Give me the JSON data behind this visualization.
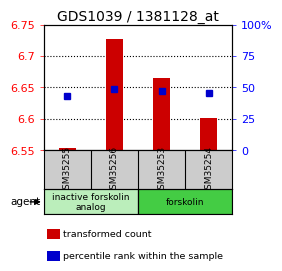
{
  "title": "GDS1039 / 1381128_at",
  "samples": [
    "GSM35255",
    "GSM35256",
    "GSM35253",
    "GSM35254"
  ],
  "bar_values": [
    6.553,
    6.727,
    6.665,
    6.601
  ],
  "bar_bottom": 6.55,
  "blue_values": [
    6.636,
    6.648,
    6.645,
    6.641
  ],
  "ylim_left": [
    6.55,
    6.75
  ],
  "yticks_left": [
    6.55,
    6.6,
    6.65,
    6.7,
    6.75
  ],
  "ytick_labels_left": [
    "6.55",
    "6.6",
    "6.65",
    "6.7",
    "6.75"
  ],
  "ylim_right": [
    0,
    100
  ],
  "yticks_right": [
    0,
    25,
    50,
    75,
    100
  ],
  "ytick_labels_right": [
    "0",
    "25",
    "50",
    "75",
    "100%"
  ],
  "bar_color": "#cc0000",
  "blue_color": "#0000cc",
  "agent_groups": [
    {
      "label": "inactive forskolin\nanalog",
      "span": [
        0,
        2
      ],
      "color": "#bbeebb"
    },
    {
      "label": "forskolin",
      "span": [
        2,
        4
      ],
      "color": "#44cc44"
    }
  ],
  "agent_label": "agent",
  "legend_items": [
    {
      "color": "#cc0000",
      "label": "  transformed count"
    },
    {
      "color": "#0000cc",
      "label": "  percentile rank within the sample"
    }
  ],
  "bar_width": 0.35,
  "sample_box_color": "#cccccc",
  "title_fontsize": 10,
  "tick_fontsize": 8,
  "label_fontsize": 7.5
}
